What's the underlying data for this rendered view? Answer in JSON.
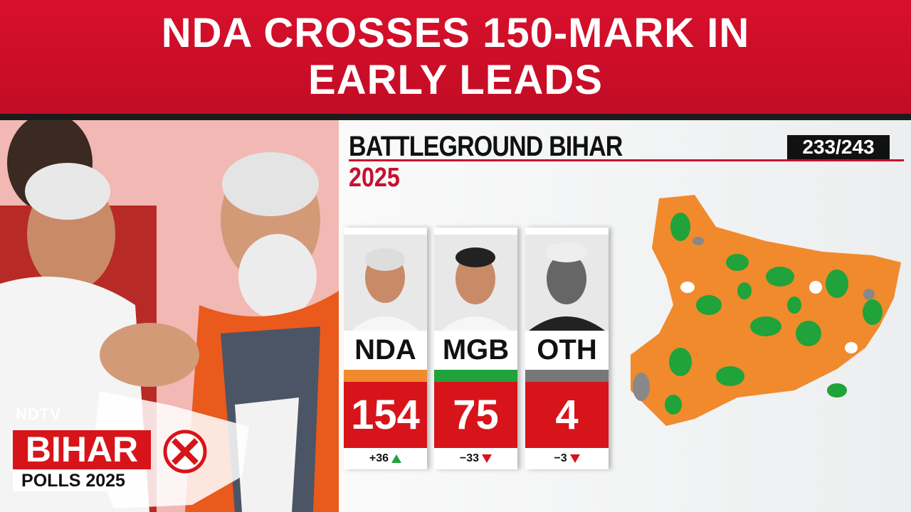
{
  "header": {
    "title": "NDA CROSSES 150-MARK IN EARLY LEADS"
  },
  "panel": {
    "title": "BATTLEGROUND BIHAR",
    "year": "2025",
    "counted": "233/243",
    "cards": [
      {
        "party": "NDA",
        "seats": 154,
        "change": "+36",
        "color": "#f08a2c"
      },
      {
        "party": "MGB",
        "seats": 75,
        "change": "−33",
        "color": "#1fa33a"
      },
      {
        "party": "OTH",
        "seats": 4,
        "change": "−3",
        "color": "#777777"
      }
    ]
  },
  "logo": {
    "brand": "NDTV",
    "state": "BIHAR",
    "event": "POLLS 2025"
  }
}
